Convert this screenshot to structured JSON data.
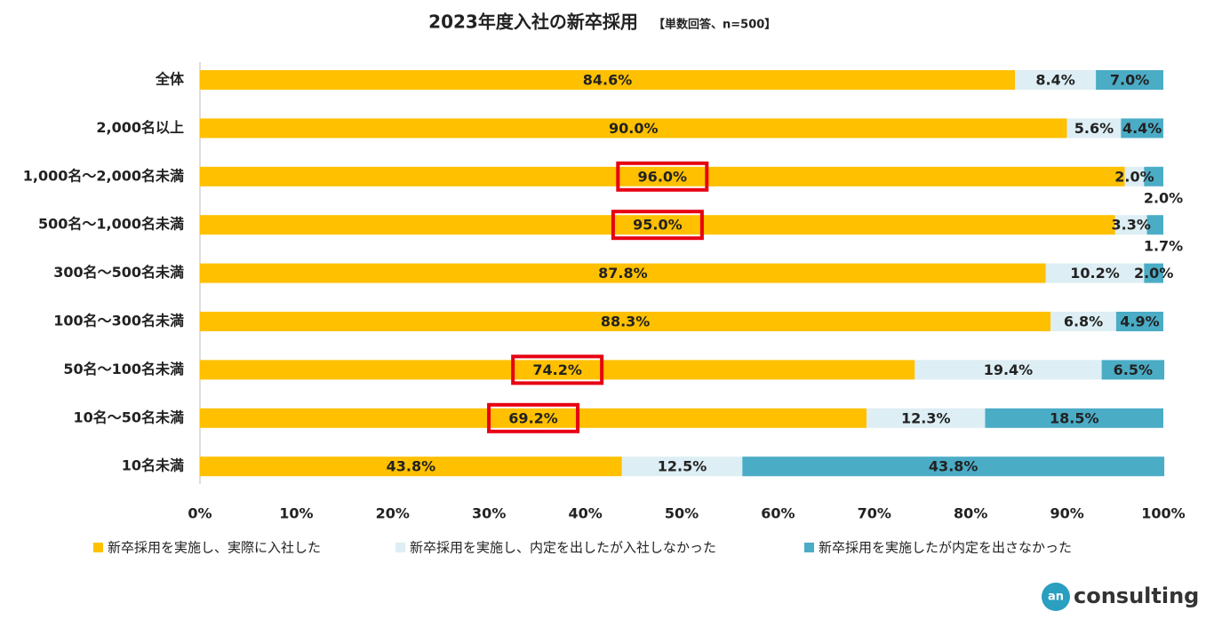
{
  "chart_data": {
    "type": "stacked-barh",
    "title": "2023年度入社の新卒採用",
    "subtitle": "【単数回答、n=500】",
    "categories": [
      "全体",
      "2,000名以上",
      "1,000名～2,000名未満",
      "500名～1,000名未満",
      "300名～500名未満",
      "100名～300名未満",
      "50名～100名未満",
      "10名～50名未満",
      "10名未満"
    ],
    "series": [
      {
        "name": "新卒採用を実施し、実際に入社した",
        "color": "#FFC000",
        "values": [
          84.6,
          90.0,
          96.0,
          95.0,
          87.8,
          88.3,
          74.2,
          69.2,
          43.8
        ],
        "value_labels": [
          "84.6%",
          "90.0%",
          "96.0%",
          "95.0%",
          "87.8%",
          "88.3%",
          "74.2%",
          "69.2%",
          "43.8%"
        ],
        "highlight": [
          2,
          3,
          6,
          7
        ]
      },
      {
        "name": "新卒採用を実施し、内定を出したが入社しなかった",
        "color": "#DDEEF4",
        "values": [
          8.4,
          5.6,
          2.0,
          3.3,
          10.2,
          6.8,
          19.4,
          12.3,
          12.5
        ],
        "value_labels": [
          "8.4%",
          "5.6%",
          "2.0%",
          "3.3%",
          "10.2%",
          "6.8%",
          "19.4%",
          "12.3%",
          "12.5%"
        ]
      },
      {
        "name": "新卒採用を実施したが内定を出さなかった",
        "color": "#4BACC6",
        "values": [
          7.0,
          4.4,
          2.0,
          1.7,
          2.0,
          4.9,
          6.5,
          18.5,
          43.8
        ],
        "value_labels": [
          "7.0%",
          "4.4%",
          "2.0%",
          "1.7%",
          "2.0%",
          "4.9%",
          "6.5%",
          "18.5%",
          "43.8%"
        ]
      }
    ],
    "xlim": [
      0,
      100
    ],
    "xticks": [
      {
        "value": 0,
        "label": "0%"
      },
      {
        "value": 10,
        "label": "10%"
      },
      {
        "value": 20,
        "label": "20%"
      },
      {
        "value": 30,
        "label": "30%"
      },
      {
        "value": 40,
        "label": "40%"
      },
      {
        "value": 50,
        "label": "50%"
      },
      {
        "value": 60,
        "label": "60%"
      },
      {
        "value": 70,
        "label": "70%"
      },
      {
        "value": 80,
        "label": "80%"
      },
      {
        "value": 90,
        "label": "90%"
      },
      {
        "value": 100,
        "label": "100%"
      }
    ],
    "legend": "bottom"
  },
  "logo": {
    "mark": "an",
    "text": "consulting"
  }
}
